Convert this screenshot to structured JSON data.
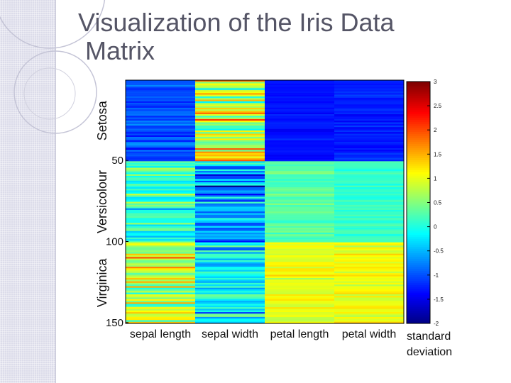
{
  "slide": {
    "title_line1": "Visualization of the Iris Data",
    "title_line2": "Matrix"
  },
  "chart_data": {
    "type": "heatmap",
    "title": "Visualization of the Iris Data Matrix",
    "columns": [
      "sepal length",
      "sepal width",
      "petal length",
      "petal width"
    ],
    "row_ticks": [
      50,
      100,
      150
    ],
    "row_range": [
      1,
      150
    ],
    "groups": [
      {
        "label": "Setosa",
        "from": 1,
        "to": 50
      },
      {
        "label": "Versicolour",
        "from": 51,
        "to": 100
      },
      {
        "label": "Virginica",
        "from": 101,
        "to": 150
      }
    ],
    "colorbar": {
      "label_line1": "standard",
      "label_line2": "deviation",
      "range": [
        -2,
        3
      ],
      "ticks": [
        "3",
        "2.5",
        "2",
        "1.5",
        "1",
        "0.5",
        "0",
        "-0.5",
        "-1",
        "-1.5",
        "-2"
      ],
      "tick_values": [
        3,
        2.5,
        2,
        1.5,
        1,
        0.5,
        0,
        -0.5,
        -1,
        -1.5,
        -2
      ]
    },
    "group_means": [
      [
        -1.0,
        0.85,
        -1.3,
        -1.25
      ],
      [
        0.1,
        -0.65,
        0.28,
        0.17
      ],
      [
        0.9,
        -0.2,
        1.02,
        1.08
      ]
    ],
    "group_spread": [
      [
        0.35,
        0.95,
        0.1,
        0.14
      ],
      [
        0.55,
        0.75,
        0.2,
        0.15
      ],
      [
        0.75,
        0.75,
        0.23,
        0.26
      ]
    ],
    "colormap": "jet"
  }
}
